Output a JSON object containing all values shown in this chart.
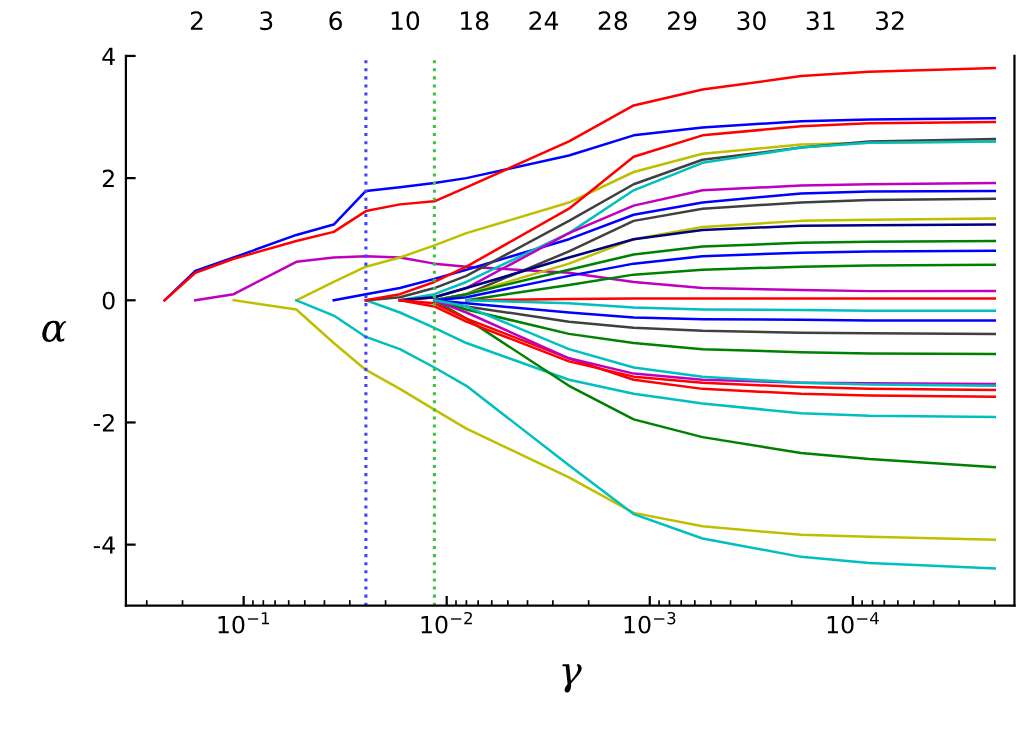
{
  "chart_data": {
    "type": "line",
    "xlabel": "γ",
    "ylabel": "α",
    "x": [
      0.245,
      0.173,
      0.112,
      0.055,
      0.036,
      0.025,
      0.017,
      0.0115,
      0.008,
      0.0025,
      0.0012,
      0.00055,
      0.00018,
      8.3e-05,
      2e-05
    ],
    "series": [
      {
        "color": "#0000ff",
        "values": [
          0,
          0.48,
          0.7,
          1.07,
          1.24,
          1.79,
          1.85,
          1.92,
          2.0,
          2.37,
          2.7,
          2.83,
          2.93,
          2.96,
          2.98
        ]
      },
      {
        "color": "#ff0000",
        "values": [
          0,
          0.45,
          0.68,
          0.97,
          1.12,
          1.46,
          1.57,
          1.62,
          1.85,
          2.6,
          3.19,
          3.45,
          3.67,
          3.74,
          3.8
        ]
      },
      {
        "color": "#bf00bf",
        "values": [
          null,
          0,
          0.1,
          0.63,
          0.7,
          0.72,
          0.7,
          0.6,
          0.55,
          0.45,
          0.3,
          0.2,
          0.17,
          0.15,
          0.15
        ]
      },
      {
        "color": "#bfbf00",
        "values": [
          null,
          null,
          null,
          0,
          0.3,
          0.55,
          0.7,
          0.9,
          1.1,
          1.6,
          2.1,
          2.4,
          2.55,
          2.58,
          2.6
        ]
      },
      {
        "color": "#bfbf00",
        "values": [
          null,
          null,
          0,
          -0.15,
          -0.7,
          -1.14,
          -1.45,
          -1.79,
          -2.1,
          -2.9,
          -3.48,
          -3.7,
          -3.84,
          -3.87,
          -3.92
        ]
      },
      {
        "color": "#00bfbf",
        "values": [
          null,
          null,
          null,
          0,
          -0.25,
          -0.6,
          -0.8,
          -1.1,
          -1.4,
          -2.7,
          -3.5,
          -3.9,
          -4.2,
          -4.3,
          -4.39
        ]
      },
      {
        "color": "#0000ff",
        "values": [
          null,
          null,
          null,
          null,
          0,
          0.1,
          0.2,
          0.35,
          0.5,
          1.0,
          1.4,
          1.6,
          1.75,
          1.78,
          1.79
        ]
      },
      {
        "color": "#00bfbf",
        "values": [
          null,
          null,
          null,
          null,
          null,
          0,
          -0.2,
          -0.45,
          -0.7,
          -1.3,
          -1.53,
          -1.69,
          -1.85,
          -1.89,
          -1.91
        ]
      },
      {
        "color": "#008000",
        "values": [
          null,
          null,
          null,
          null,
          null,
          null,
          null,
          0,
          -0.3,
          -1.4,
          -1.95,
          -2.24,
          -2.5,
          -2.6,
          -2.73
        ]
      },
      {
        "color": "#404040",
        "values": [
          null,
          null,
          null,
          null,
          null,
          0,
          0.05,
          0.2,
          0.4,
          1.3,
          1.9,
          2.3,
          2.5,
          2.6,
          2.64
        ]
      },
      {
        "color": "#00bfbf",
        "values": [
          null,
          null,
          null,
          null,
          null,
          null,
          0,
          0.1,
          0.3,
          1.1,
          1.8,
          2.25,
          2.5,
          2.58,
          2.6
        ]
      },
      {
        "color": "#ff0000",
        "values": [
          null,
          null,
          null,
          null,
          null,
          0,
          0.1,
          0.3,
          0.55,
          1.5,
          2.35,
          2.7,
          2.85,
          2.9,
          2.92
        ]
      },
      {
        "color": "#bf00bf",
        "values": [
          null,
          null,
          null,
          null,
          null,
          null,
          0,
          0.05,
          0.2,
          1.1,
          1.55,
          1.8,
          1.88,
          1.9,
          1.92
        ]
      },
      {
        "color": "#404040",
        "values": [
          null,
          null,
          null,
          null,
          null,
          null,
          null,
          0,
          0.1,
          0.8,
          1.3,
          1.5,
          1.6,
          1.64,
          1.66
        ]
      },
      {
        "color": "#bfbf00",
        "values": [
          null,
          null,
          null,
          null,
          null,
          null,
          null,
          0,
          0.1,
          0.6,
          1.0,
          1.2,
          1.3,
          1.32,
          1.34
        ]
      },
      {
        "color": "#000080",
        "values": [
          null,
          null,
          null,
          null,
          null,
          null,
          0,
          0.05,
          0.2,
          0.7,
          1.0,
          1.15,
          1.22,
          1.23,
          1.24
        ]
      },
      {
        "color": "#008000",
        "values": [
          null,
          null,
          null,
          null,
          null,
          null,
          null,
          0,
          0.1,
          0.5,
          0.75,
          0.88,
          0.94,
          0.96,
          0.97
        ]
      },
      {
        "color": "#0000ff",
        "values": [
          null,
          null,
          null,
          null,
          null,
          null,
          null,
          0,
          0.05,
          0.4,
          0.6,
          0.72,
          0.78,
          0.8,
          0.81
        ]
      },
      {
        "color": "#008000",
        "values": [
          null,
          null,
          null,
          null,
          null,
          null,
          null,
          null,
          0,
          0.25,
          0.42,
          0.5,
          0.55,
          0.57,
          0.58
        ]
      },
      {
        "color": "#ff0000",
        "values": [
          null,
          null,
          null,
          null,
          null,
          null,
          null,
          null,
          0,
          0.02,
          0.03,
          0.03,
          0.03,
          0.03,
          0.03
        ]
      },
      {
        "color": "#00bfbf",
        "values": [
          null,
          null,
          null,
          null,
          null,
          null,
          null,
          null,
          0,
          -0.05,
          -0.12,
          -0.15,
          -0.16,
          -0.17,
          -0.17
        ]
      },
      {
        "color": "#0000ff",
        "values": [
          null,
          null,
          null,
          null,
          null,
          null,
          null,
          0,
          -0.05,
          -0.2,
          -0.28,
          -0.31,
          -0.32,
          -0.33,
          -0.33
        ]
      },
      {
        "color": "#404040",
        "values": [
          null,
          null,
          null,
          null,
          null,
          null,
          null,
          0,
          -0.1,
          -0.35,
          -0.45,
          -0.5,
          -0.53,
          -0.54,
          -0.55
        ]
      },
      {
        "color": "#008000",
        "values": [
          null,
          null,
          null,
          null,
          null,
          null,
          null,
          0,
          -0.15,
          -0.55,
          -0.7,
          -0.8,
          -0.85,
          -0.87,
          -0.88
        ]
      },
      {
        "color": "#ff0000",
        "values": [
          null,
          null,
          null,
          null,
          null,
          null,
          0,
          -0.1,
          -0.35,
          -1.0,
          -1.25,
          -1.35,
          -1.42,
          -1.45,
          -1.47
        ]
      },
      {
        "color": "#ff0000",
        "values": [
          null,
          null,
          null,
          null,
          null,
          null,
          0,
          -0.05,
          -0.3,
          -0.95,
          -1.3,
          -1.45,
          -1.53,
          -1.56,
          -1.58
        ]
      },
      {
        "color": "#bf00bf",
        "values": [
          null,
          null,
          null,
          null,
          null,
          null,
          null,
          0,
          -0.2,
          -0.95,
          -1.2,
          -1.3,
          -1.35,
          -1.36,
          -1.37
        ]
      },
      {
        "color": "#00bfbf",
        "values": [
          null,
          null,
          null,
          null,
          null,
          null,
          null,
          0,
          -0.1,
          -0.8,
          -1.1,
          -1.25,
          -1.35,
          -1.38,
          -1.4
        ]
      }
    ],
    "xlim": [
      0.38,
      1.6e-05
    ],
    "ylim": [
      -5,
      4
    ],
    "xticks": [
      {
        "value": 0.1,
        "label": "10$^{−1}$"
      },
      {
        "value": 0.01,
        "label": "10$^{−2}$"
      },
      {
        "value": 0.001,
        "label": "10$^{−3}$"
      },
      {
        "value": 0.0001,
        "label": "10$^{−4}$"
      }
    ],
    "yticks": [
      -4,
      -2,
      0,
      2,
      4
    ],
    "annotations": [
      "2",
      "3",
      "6",
      "10",
      "18",
      "24",
      "28",
      "29",
      "30",
      "31",
      "32"
    ],
    "log": "x",
    "grid": false,
    "marker": "none",
    "line_style": "solid",
    "ref_lines": [
      {
        "axis": "x",
        "value": 0.025,
        "color": "#4040ff",
        "line_style": "dotted"
      },
      {
        "axis": "x",
        "value": 0.0115,
        "color": "#40c040",
        "line_style": "dotted"
      }
    ]
  }
}
